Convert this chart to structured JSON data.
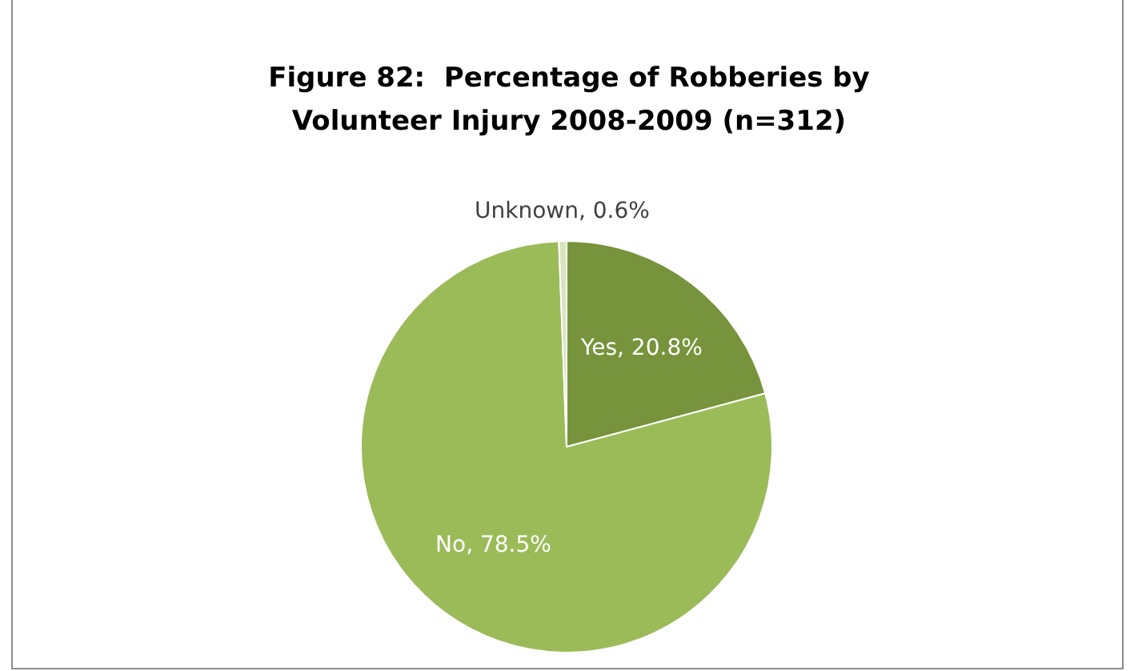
{
  "chart_data": {
    "type": "pie",
    "title": "Figure 82:  Percentage of Robberies by Volunteer Injury 2008-2009 (n=312)",
    "categories": [
      "Yes",
      "No",
      "Unknown"
    ],
    "values": [
      20.8,
      78.5,
      0.6
    ],
    "colors": [
      "#77933c",
      "#9bbb59",
      "#d7e4bd"
    ],
    "value_labels": [
      "20.8%",
      "78.5%",
      "0.6%"
    ],
    "legend": false
  }
}
